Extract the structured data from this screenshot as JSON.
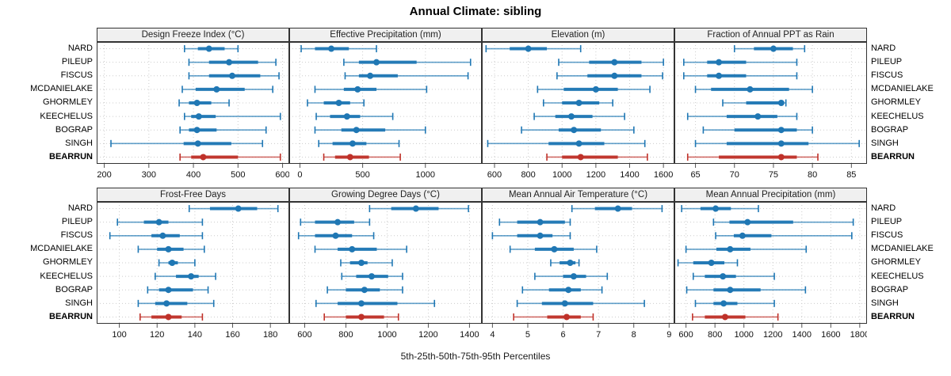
{
  "title": "Annual Climate: sibling",
  "caption": "5th-25th-50th-75th-95th Percentiles",
  "sites": [
    "NARD",
    "PILEUP",
    "FISCUS",
    "MCDANIELAKE",
    "GHORMLEY",
    "KEECHELUS",
    "BOGRAP",
    "SINGH",
    "BEARRUN"
  ],
  "highlight_site": "BEARRUN",
  "colors": {
    "series": "#1f77b4",
    "highlight": "#bf3129",
    "grid": "#cccccc",
    "panel_border": "#333333",
    "header_bg": "#f0f0f0",
    "tick": "#555555",
    "axis_text": "#111111"
  },
  "chart_data": {
    "type": "dotplot-percentile-intervals",
    "percentiles": [
      5,
      25,
      50,
      75,
      95
    ],
    "legend_note": "5th-25th-50th-75th-95th Percentiles",
    "categories": [
      "NARD",
      "PILEUP",
      "FISCUS",
      "MCDANIELAKE",
      "GHORMLEY",
      "KEECHELUS",
      "BOGRAP",
      "SINGH",
      "BEARRUN"
    ],
    "panels": [
      {
        "title": "Design Freeze Index (°C)",
        "domain": [
          183,
          615
        ],
        "ticks": [
          200,
          300,
          400,
          500,
          600
        ],
        "values": [
          [
            380,
            410,
            435,
            470,
            500
          ],
          [
            390,
            435,
            480,
            545,
            585
          ],
          [
            390,
            435,
            487,
            550,
            592
          ],
          [
            375,
            405,
            452,
            515,
            578
          ],
          [
            368,
            390,
            408,
            440,
            480
          ],
          [
            380,
            395,
            412,
            450,
            595
          ],
          [
            370,
            390,
            408,
            452,
            563
          ],
          [
            215,
            378,
            410,
            485,
            555
          ],
          [
            370,
            395,
            422,
            500,
            595
          ]
        ]
      },
      {
        "title": "Effective Precipitation (mm)",
        "domain": [
          -85,
          1450
        ],
        "ticks": [
          0,
          500,
          1000
        ],
        "values": [
          [
            10,
            120,
            250,
            390,
            610
          ],
          [
            350,
            470,
            610,
            930,
            1360
          ],
          [
            360,
            470,
            560,
            780,
            1340
          ],
          [
            120,
            350,
            460,
            610,
            1010
          ],
          [
            60,
            190,
            310,
            400,
            510
          ],
          [
            130,
            240,
            375,
            480,
            740
          ],
          [
            120,
            330,
            450,
            680,
            1000
          ],
          [
            150,
            260,
            420,
            530,
            790
          ],
          [
            190,
            280,
            400,
            550,
            800
          ]
        ]
      },
      {
        "title": "Elevation (m)",
        "domain": [
          525,
          1665
        ],
        "ticks": [
          600,
          800,
          1000,
          1200,
          1400,
          1600
        ],
        "values": [
          [
            550,
            690,
            800,
            910,
            1110
          ],
          [
            980,
            1160,
            1310,
            1470,
            1600
          ],
          [
            970,
            1150,
            1310,
            1470,
            1595
          ],
          [
            855,
            1010,
            1200,
            1330,
            1520
          ],
          [
            890,
            1000,
            1100,
            1220,
            1300
          ],
          [
            835,
            960,
            1055,
            1180,
            1370
          ],
          [
            760,
            980,
            1070,
            1230,
            1425
          ],
          [
            560,
            920,
            1100,
            1250,
            1490
          ],
          [
            910,
            1000,
            1110,
            1330,
            1505
          ]
        ]
      },
      {
        "title": "Fraction of Annual PPT as Rain",
        "domain": [
          62.3,
          87
        ],
        "ticks": [
          65,
          70,
          75,
          80,
          85
        ],
        "values": [
          [
            70,
            72.5,
            75,
            77.5,
            79
          ],
          [
            63.5,
            66.5,
            68,
            71.5,
            78
          ],
          [
            63.5,
            66.5,
            68,
            71.5,
            78
          ],
          [
            65,
            67,
            72,
            77,
            80
          ],
          [
            68.5,
            71.5,
            76,
            76.3,
            76.6
          ],
          [
            64,
            69,
            73,
            75.5,
            78
          ],
          [
            66,
            70,
            76,
            78,
            80
          ],
          [
            65,
            69,
            76,
            79.5,
            86
          ],
          [
            64,
            68,
            76,
            78,
            80.7
          ]
        ]
      },
      {
        "title": "Frost-Free Days",
        "domain": [
          88,
          190
        ],
        "ticks": [
          100,
          120,
          140,
          160,
          180
        ],
        "values": [
          [
            137,
            148,
            163,
            173,
            184
          ],
          [
            99,
            113,
            121,
            126,
            144
          ],
          [
            95,
            117,
            123,
            132,
            144
          ],
          [
            110,
            120,
            126,
            134,
            145
          ],
          [
            121,
            126,
            128,
            131,
            140
          ],
          [
            119,
            130,
            138,
            142,
            151
          ],
          [
            115,
            121,
            126,
            139,
            147
          ],
          [
            110,
            119,
            125,
            136,
            150
          ],
          [
            111,
            117,
            126,
            133,
            144
          ]
        ]
      },
      {
        "title": "Growing Degree Days (°C)",
        "domain": [
          525,
          1460
        ],
        "ticks": [
          600,
          800,
          1000,
          1200,
          1400
        ],
        "values": [
          [
            915,
            1020,
            1140,
            1250,
            1395
          ],
          [
            580,
            650,
            760,
            840,
            915
          ],
          [
            570,
            650,
            750,
            830,
            935
          ],
          [
            650,
            760,
            830,
            950,
            1095
          ],
          [
            775,
            820,
            875,
            905,
            1025
          ],
          [
            780,
            850,
            925,
            1005,
            1075
          ],
          [
            710,
            800,
            890,
            965,
            1075
          ],
          [
            655,
            760,
            875,
            1050,
            1230
          ],
          [
            695,
            800,
            875,
            985,
            1055
          ]
        ]
      },
      {
        "title": "Mean Annual Air Temperature (°C)",
        "domain": [
          3.7,
          9.15
        ],
        "ticks": [
          4,
          5,
          6,
          7,
          8,
          9
        ],
        "values": [
          [
            6.25,
            6.9,
            7.55,
            7.95,
            8.8
          ],
          [
            4.2,
            4.7,
            5.35,
            6.05,
            6.2
          ],
          [
            4.0,
            4.7,
            5.35,
            5.7,
            6.2
          ],
          [
            4.5,
            5.2,
            5.75,
            6.3,
            6.95
          ],
          [
            5.65,
            5.9,
            6.2,
            6.35,
            6.45
          ],
          [
            5.2,
            6.0,
            6.3,
            6.65,
            7.25
          ],
          [
            4.85,
            5.6,
            6.15,
            6.5,
            7.1
          ],
          [
            4.7,
            5.4,
            6.05,
            6.85,
            8.3
          ],
          [
            4.6,
            5.55,
            6.1,
            6.5,
            6.85
          ]
        ]
      },
      {
        "title": "Mean Annual Precipitation (mm)",
        "domain": [
          520,
          1850
        ],
        "ticks": [
          600,
          800,
          1000,
          1200,
          1400,
          1600,
          1800
        ],
        "values": [
          [
            570,
            700,
            805,
            910,
            1100
          ],
          [
            790,
            900,
            1025,
            1340,
            1755
          ],
          [
            805,
            930,
            990,
            1190,
            1745
          ],
          [
            600,
            810,
            905,
            1045,
            1430
          ],
          [
            545,
            650,
            775,
            865,
            955
          ],
          [
            650,
            730,
            855,
            945,
            1210
          ],
          [
            605,
            790,
            905,
            1115,
            1425
          ],
          [
            665,
            790,
            860,
            955,
            1210
          ],
          [
            645,
            730,
            870,
            1010,
            1235
          ]
        ]
      }
    ]
  }
}
